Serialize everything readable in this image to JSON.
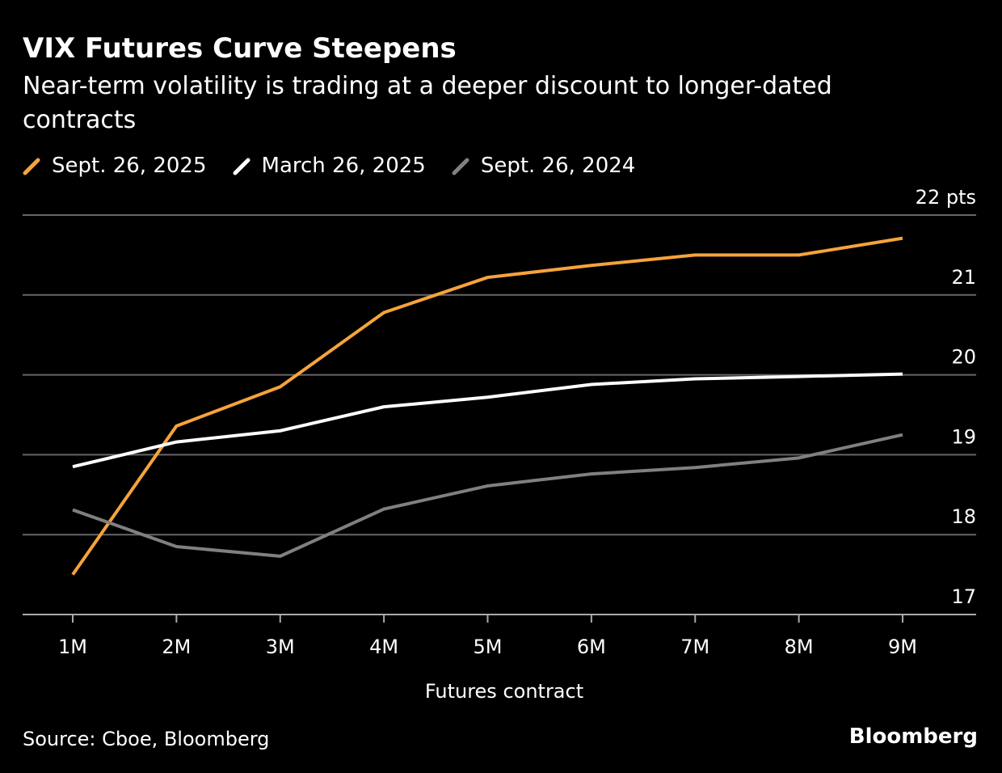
{
  "chart_data": {
    "type": "line",
    "title": "VIX Futures Curve Steepens",
    "subtitle": "Near-term volatility is trading at a deeper discount to longer-dated contracts",
    "x_label": "Futures contract",
    "source": "Source: Cboe, Bloomberg",
    "brand": "Bloomberg",
    "categories": [
      "1M",
      "2M",
      "3M",
      "4M",
      "5M",
      "6M",
      "7M",
      "8M",
      "9M"
    ],
    "series": [
      {
        "name": "Sept. 26, 2025",
        "color": "#f6a33c",
        "values": [
          17.5,
          19.36,
          19.85,
          20.78,
          21.22,
          21.37,
          21.5,
          21.5,
          21.71
        ]
      },
      {
        "name": "March 26, 2025",
        "color": "#ffffff",
        "values": [
          18.85,
          19.16,
          19.3,
          19.6,
          19.72,
          19.88,
          19.95,
          19.98,
          20.01
        ]
      },
      {
        "name": "Sept. 26, 2024",
        "color": "#808080",
        "values": [
          18.31,
          17.85,
          17.73,
          18.32,
          18.61,
          18.76,
          18.84,
          18.96,
          19.25
        ]
      }
    ],
    "ylim": [
      17,
      22
    ],
    "yticks": [
      17,
      18,
      19,
      20,
      21,
      {
        "value": 22,
        "label": "22 pts"
      }
    ],
    "grid": true
  }
}
